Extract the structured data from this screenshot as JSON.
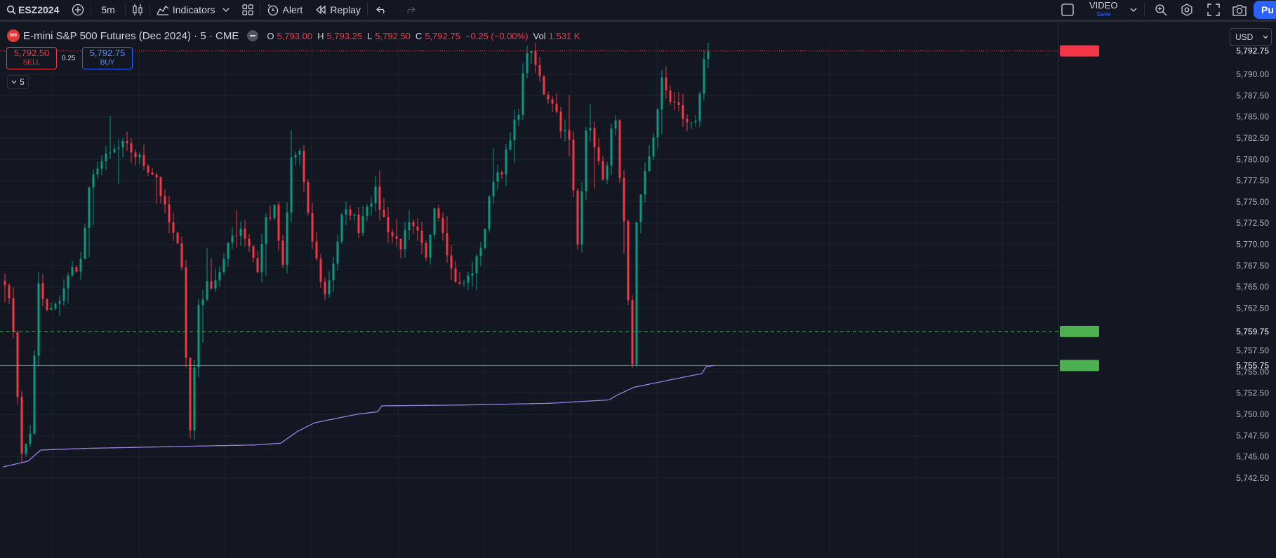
{
  "toolbar": {
    "symbol": "ESZ2024",
    "interval": "5m",
    "indicators_label": "Indicators",
    "alert_label": "Alert",
    "replay_label": "Replay",
    "video_title": "VIDEO",
    "video_sub": "Save",
    "publish_label": "Pu"
  },
  "legend": {
    "logo_text": "500",
    "title": "E-mini S&P 500 Futures (Dec 2024) · 5 · CME",
    "o_key": "O",
    "o": "5,793.00",
    "h_key": "H",
    "h": "5,793.25",
    "l_key": "L",
    "l": "5,792.50",
    "c_key": "C",
    "c": "5,792.75",
    "change": "−0.25 (−0.00%)",
    "vol_key": "Vol",
    "vol": "1.531 K"
  },
  "trade": {
    "sell_price": "5,792.50",
    "sell_label": "SELL",
    "spread": "0.25",
    "buy_price": "5,792.75",
    "buy_label": "BUY"
  },
  "interval_chip": "5",
  "currency": "USD",
  "colors": {
    "background": "#131722",
    "up": "#089981",
    "down": "#f23645",
    "vwap": "#9b7fe0",
    "level": "#4caf50",
    "accent": "#2962ff"
  },
  "chart_data": {
    "type": "candlestick",
    "ylim": [
      5742.5,
      5794.5
    ],
    "y_ticks": [
      "5,790.00",
      "5,787.50",
      "5,785.00",
      "5,782.50",
      "5,780.00",
      "5,777.50",
      "5,775.00",
      "5,772.50",
      "5,770.00",
      "5,767.50",
      "5,765.00",
      "5,762.50",
      "5,757.50",
      "5,755.00",
      "5,752.50",
      "5,750.00",
      "5,747.50",
      "5,745.00",
      "5,742.50"
    ],
    "y_tick_values": [
      5790,
      5787.5,
      5785,
      5782.5,
      5780,
      5777.5,
      5775,
      5772.5,
      5770,
      5767.5,
      5765,
      5762.5,
      5757.5,
      5755,
      5752.5,
      5750,
      5747.5,
      5745,
      5742.5
    ],
    "last_price": 5792.75,
    "last_price_label": "5,792.75",
    "level_dashed": 5759.75,
    "level_dashed_label": "5,759.75",
    "level_solid": 5755.75,
    "level_solid_label": "5,755.75",
    "bar_count": 168,
    "price_path": [
      [
        0,
        5766
      ],
      [
        2,
        5760
      ],
      [
        4,
        5745
      ],
      [
        6,
        5748
      ],
      [
        8,
        5765
      ],
      [
        10,
        5762
      ],
      [
        12,
        5762.5
      ],
      [
        14,
        5765
      ],
      [
        16,
        5767
      ],
      [
        18,
        5768
      ],
      [
        20,
        5776
      ],
      [
        22,
        5779.5
      ],
      [
        24,
        5780
      ],
      [
        26,
        5781
      ],
      [
        28,
        5781.5
      ],
      [
        30,
        5781
      ],
      [
        32,
        5780
      ],
      [
        34,
        5779
      ],
      [
        36,
        5778
      ],
      [
        38,
        5774
      ],
      [
        40,
        5771
      ],
      [
        42,
        5768
      ],
      [
        43,
        5757
      ],
      [
        44,
        5748
      ],
      [
        46,
        5763
      ],
      [
        48,
        5765
      ],
      [
        50,
        5766
      ],
      [
        52,
        5768
      ],
      [
        54,
        5771
      ],
      [
        56,
        5772
      ],
      [
        58,
        5770
      ],
      [
        60,
        5767
      ],
      [
        62,
        5773
      ],
      [
        64,
        5774
      ],
      [
        66,
        5767
      ],
      [
        68,
        5780
      ],
      [
        70,
        5781
      ],
      [
        72,
        5773
      ],
      [
        74,
        5768
      ],
      [
        76,
        5764
      ],
      [
        78,
        5768
      ],
      [
        80,
        5773
      ],
      [
        82,
        5774
      ],
      [
        84,
        5772
      ],
      [
        86,
        5775
      ],
      [
        88,
        5776
      ],
      [
        90,
        5773
      ],
      [
        92,
        5771
      ],
      [
        94,
        5770
      ],
      [
        96,
        5772
      ],
      [
        98,
        5771
      ],
      [
        100,
        5768
      ],
      [
        102,
        5775
      ],
      [
        104,
        5772
      ],
      [
        106,
        5767
      ],
      [
        108,
        5765
      ],
      [
        110,
        5766
      ],
      [
        112,
        5768
      ],
      [
        114,
        5772
      ],
      [
        116,
        5778
      ],
      [
        118,
        5779
      ],
      [
        120,
        5782
      ],
      [
        122,
        5786
      ],
      [
        124,
        5793
      ],
      [
        126,
        5791
      ],
      [
        128,
        5788
      ],
      [
        130,
        5787
      ],
      [
        132,
        5784
      ],
      [
        134,
        5782
      ],
      [
        136,
        5770
      ],
      [
        138,
        5784
      ],
      [
        140,
        5782
      ],
      [
        142,
        5777
      ],
      [
        144,
        5783
      ],
      [
        145,
        5784
      ],
      [
        146,
        5777
      ],
      [
        147,
        5772
      ],
      [
        148,
        5763
      ],
      [
        149,
        5756
      ],
      [
        150,
        5773
      ],
      [
        152,
        5778
      ],
      [
        154,
        5783
      ],
      [
        156,
        5789
      ],
      [
        158,
        5787
      ],
      [
        160,
        5786
      ],
      [
        162,
        5784
      ],
      [
        164,
        5785
      ],
      [
        166,
        5791
      ],
      [
        167,
        5792.75
      ]
    ],
    "vwap_path": [
      [
        0,
        5743.8
      ],
      [
        6,
        5744.5
      ],
      [
        9,
        5745.8
      ],
      [
        20,
        5746
      ],
      [
        40,
        5746.2
      ],
      [
        60,
        5746.4
      ],
      [
        66,
        5746.6
      ],
      [
        70,
        5748
      ],
      [
        74,
        5749
      ],
      [
        84,
        5750
      ],
      [
        89,
        5750.3
      ],
      [
        90,
        5751
      ],
      [
        110,
        5751.1
      ],
      [
        130,
        5751.3
      ],
      [
        144,
        5751.7
      ],
      [
        146,
        5752.3
      ],
      [
        150,
        5753.2
      ],
      [
        160,
        5754.2
      ],
      [
        166,
        5754.8
      ],
      [
        167,
        5755.6
      ],
      [
        169,
        5755.75
      ]
    ]
  }
}
